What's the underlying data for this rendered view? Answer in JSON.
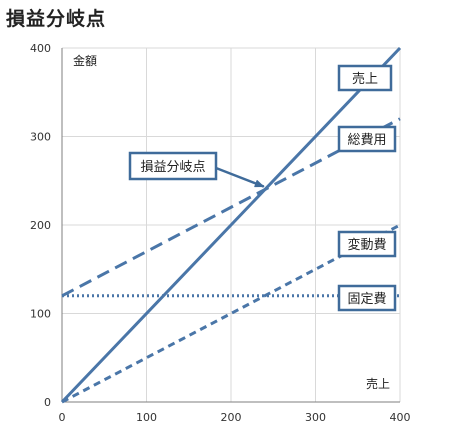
{
  "page": {
    "title": "損益分岐点"
  },
  "chart_data": {
    "type": "line",
    "title": "損益分岐点",
    "xlabel": "売上",
    "ylabel": "金額",
    "xlim": [
      0,
      400
    ],
    "ylim": [
      0,
      400
    ],
    "xticks": [
      0,
      100,
      200,
      300,
      400
    ],
    "yticks": [
      0,
      100,
      200,
      300,
      400
    ],
    "grid": true,
    "series": [
      {
        "name": "売上",
        "x": [
          0,
          400
        ],
        "y": [
          0,
          400
        ],
        "style": "solid",
        "color": "#4a76a8"
      },
      {
        "name": "総費用",
        "x": [
          0,
          400
        ],
        "y": [
          120,
          320
        ],
        "style": "dashed",
        "color": "#4a76a8"
      },
      {
        "name": "変動費",
        "x": [
          0,
          400
        ],
        "y": [
          0,
          200
        ],
        "style": "short-dashed",
        "color": "#4a76a8"
      },
      {
        "name": "固定費",
        "x": [
          0,
          400
        ],
        "y": [
          120,
          120
        ],
        "style": "dotted",
        "color": "#4a76a8"
      }
    ],
    "annotations": [
      {
        "text": "損益分岐点",
        "x": 240,
        "y": 240
      }
    ]
  }
}
